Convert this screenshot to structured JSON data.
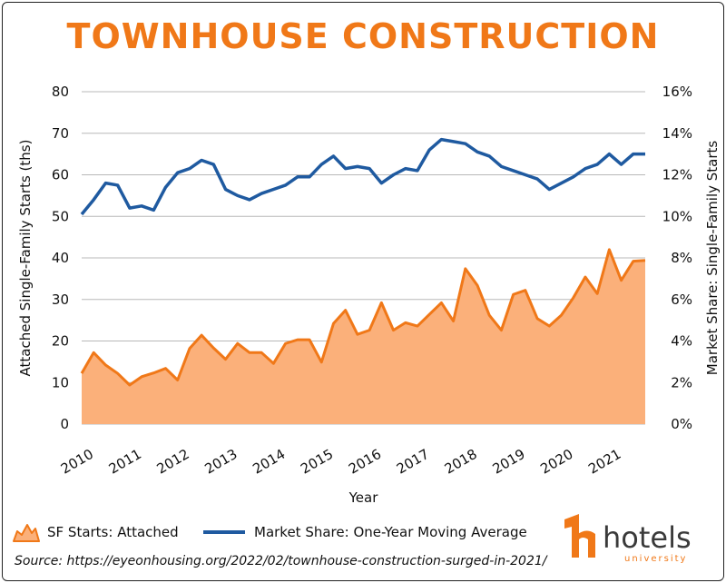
{
  "title": "TOWNHOUSE CONSTRUCTION",
  "source": "Source: https://eyeonhousing.org/2022/02/townhouse-construction-surged-in-2021/",
  "logo": {
    "text": "hotels",
    "subtext": "university",
    "brand_color": "#f07818"
  },
  "chart_data": {
    "type": "area",
    "xlabel": "Year",
    "ylabel_left": "Attached Single-Family Starts (ths)",
    "ylabel_right": "Market Share: Single-Family Starts",
    "ylim_left": [
      0,
      80
    ],
    "ylim_right": [
      0,
      16
    ],
    "x_range": [
      2010.0,
      2021.75
    ],
    "x_ticks": [
      "2010",
      "2011",
      "2012",
      "2013",
      "2014",
      "2015",
      "2016",
      "2017",
      "2018",
      "2019",
      "2020",
      "2021"
    ],
    "y_ticks_left": [
      "0",
      "10",
      "20",
      "30",
      "40",
      "50",
      "60",
      "70",
      "80"
    ],
    "y_ticks_right": [
      "0%",
      "2%",
      "4%",
      "6%",
      "8%",
      "10%",
      "12%",
      "14%",
      "16%"
    ],
    "grid": "horizontal",
    "legend_position": "bottom-left",
    "x": [
      2010.0,
      2010.25,
      2010.5,
      2010.75,
      2011.0,
      2011.25,
      2011.5,
      2011.75,
      2012.0,
      2012.25,
      2012.5,
      2012.75,
      2013.0,
      2013.25,
      2013.5,
      2013.75,
      2014.0,
      2014.25,
      2014.5,
      2014.75,
      2015.0,
      2015.25,
      2015.5,
      2015.75,
      2016.0,
      2016.25,
      2016.5,
      2016.75,
      2017.0,
      2017.25,
      2017.5,
      2017.75,
      2018.0,
      2018.25,
      2018.5,
      2018.75,
      2019.0,
      2019.25,
      2019.5,
      2019.75,
      2020.0,
      2020.25,
      2020.5,
      2020.75,
      2021.0,
      2021.25,
      2021.5,
      2021.75
    ],
    "series": [
      {
        "name": "SF Starts: Attached",
        "axis": "left",
        "color": "#f07818",
        "fill": "#fbb07a",
        "values": [
          12.2,
          17.2,
          14.2,
          12.2,
          9.4,
          11.4,
          12.3,
          13.4,
          10.6,
          18.2,
          21.4,
          18.3,
          15.6,
          19.4,
          17.2,
          17.2,
          14.6,
          19.4,
          20.3,
          20.3,
          14.9,
          24.2,
          27.4,
          21.6,
          22.6,
          29.2,
          22.6,
          24.4,
          23.6,
          26.4,
          29.2,
          24.8,
          37.4,
          33.4,
          26.2,
          22.6,
          31.2,
          32.2,
          25.4,
          23.6,
          26.2,
          30.4,
          35.4,
          31.4,
          42.0,
          34.6,
          39.2,
          39.4
        ]
      },
      {
        "name": "Market Share: One-Year Moving Average",
        "axis": "right",
        "color": "#1f5aa0",
        "values": [
          10.1,
          10.8,
          11.6,
          11.5,
          10.4,
          10.5,
          10.3,
          11.4,
          12.1,
          12.3,
          12.7,
          12.5,
          11.3,
          11.0,
          10.8,
          11.1,
          11.3,
          11.5,
          11.9,
          11.9,
          12.5,
          12.9,
          12.3,
          12.4,
          12.3,
          11.6,
          12.0,
          12.3,
          12.2,
          13.2,
          13.7,
          13.6,
          13.5,
          13.1,
          12.9,
          12.4,
          12.2,
          12.0,
          11.8,
          11.3,
          11.6,
          11.9,
          12.3,
          12.5,
          13.0,
          12.5,
          13.0,
          13.0
        ]
      }
    ]
  }
}
